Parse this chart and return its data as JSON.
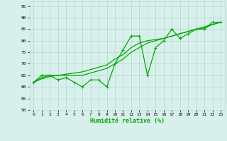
{
  "xlabel": "Humidité relative (%)",
  "xlim": [
    -0.5,
    23.5
  ],
  "ylim": [
    50,
    97
  ],
  "yticks": [
    50,
    55,
    60,
    65,
    70,
    75,
    80,
    85,
    90,
    95
  ],
  "xticks": [
    0,
    1,
    2,
    3,
    4,
    5,
    6,
    7,
    8,
    9,
    10,
    11,
    12,
    13,
    14,
    15,
    16,
    17,
    18,
    19,
    20,
    21,
    22,
    23
  ],
  "background_color": "#d8f0ec",
  "grid_color": "#b0d8cc",
  "line_color": "#00aa00",
  "zigzag": [
    62,
    65,
    65,
    63,
    64,
    62,
    60,
    63,
    63,
    60,
    70,
    76,
    82,
    82,
    65,
    77,
    80,
    85,
    81,
    83,
    85,
    85,
    88,
    88
  ],
  "smooth1": [
    62,
    64,
    65,
    65,
    65,
    65,
    65,
    66,
    67,
    68,
    70,
    72,
    75,
    77,
    79,
    80,
    81,
    82,
    83,
    84,
    85,
    85.5,
    87,
    88
  ],
  "smooth2": [
    62,
    63.5,
    64.5,
    65,
    65.5,
    66,
    66.5,
    67.5,
    68.5,
    69.5,
    72,
    74,
    77,
    79,
    80,
    80.5,
    81,
    82,
    83,
    84,
    85,
    86,
    87,
    88
  ]
}
